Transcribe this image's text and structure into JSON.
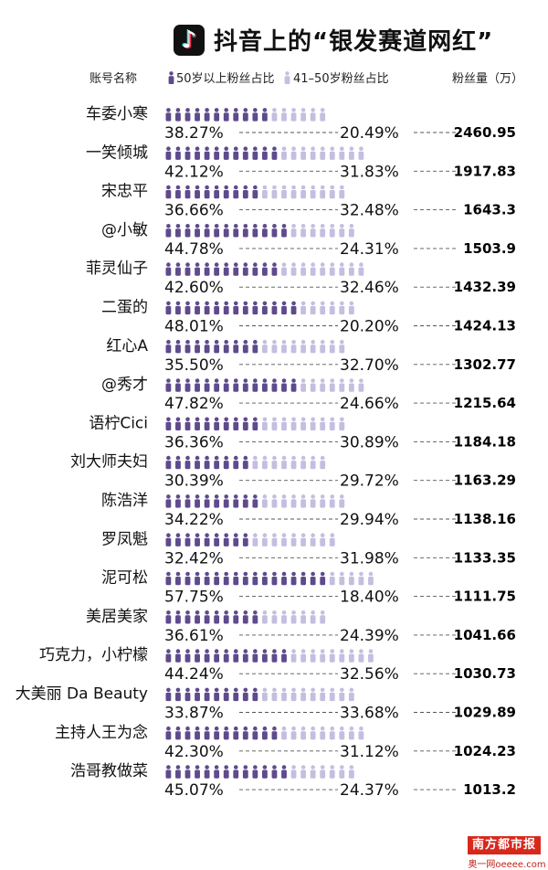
{
  "header": {
    "logo_glyph": "♪",
    "title": "抖音上的“银发赛道网红”",
    "col_account": "账号名称",
    "legend_50plus": "50岁以上粉丝占比",
    "legend_41_50": "41–50岁粉丝占比",
    "col_fans": "粉丝量（万）"
  },
  "colors": {
    "over50": "#5e4a8c",
    "age41_50": "#c4bee0",
    "leader": "#555555"
  },
  "chart_data": {
    "type": "table",
    "title": "抖音上的“银发赛道网红”",
    "columns": [
      "账号名称",
      "50岁以上粉丝占比",
      "41–50岁粉丝占比",
      "粉丝量（万）"
    ],
    "rows": [
      {
        "name": "车委小寒",
        "over50": "38.27%",
        "age41_50": "20.49%",
        "fans": "2460.95"
      },
      {
        "name": "一笑倾城",
        "over50": "42.12%",
        "age41_50": "31.83%",
        "fans": "1917.83"
      },
      {
        "name": "宋忠平",
        "over50": "36.66%",
        "age41_50": "32.48%",
        "fans": "1643.3"
      },
      {
        "name": "@小敏",
        "over50": "44.78%",
        "age41_50": "24.31%",
        "fans": "1503.9"
      },
      {
        "name": "菲灵仙子",
        "over50": "42.60%",
        "age41_50": "32.46%",
        "fans": "1432.39"
      },
      {
        "name": "二蛋的",
        "over50": "48.01%",
        "age41_50": "20.20%",
        "fans": "1424.13"
      },
      {
        "name": "红心A",
        "over50": "35.50%",
        "age41_50": "32.70%",
        "fans": "1302.77"
      },
      {
        "name": "@秀才",
        "over50": "47.82%",
        "age41_50": "24.66%",
        "fans": "1215.64"
      },
      {
        "name": "语柠Cici",
        "over50": "36.36%",
        "age41_50": "30.89%",
        "fans": "1184.18"
      },
      {
        "name": "刘大师夫妇",
        "over50": "30.39%",
        "age41_50": "29.72%",
        "fans": "1163.29"
      },
      {
        "name": "陈浩洋",
        "over50": "34.22%",
        "age41_50": "29.94%",
        "fans": "1138.16"
      },
      {
        "name": "罗凤魁",
        "over50": "32.42%",
        "age41_50": "31.98%",
        "fans": "1133.35"
      },
      {
        "name": "泥可松",
        "over50": "57.75%",
        "age41_50": "18.40%",
        "fans": "1111.75"
      },
      {
        "name": "美居美家",
        "over50": "36.61%",
        "age41_50": "24.39%",
        "fans": "1041.66"
      },
      {
        "name": "巧克力，小柠檬",
        "over50": "44.24%",
        "age41_50": "32.56%",
        "fans": "1030.73"
      },
      {
        "name": "大美丽 Da Beauty",
        "over50": "33.87%",
        "age41_50": "33.68%",
        "fans": "1029.89"
      },
      {
        "name": "主持人王为念",
        "over50": "42.30%",
        "age41_50": "31.12%",
        "fans": "1024.23"
      },
      {
        "name": "浩哥教做菜",
        "over50": "45.07%",
        "age41_50": "24.37%",
        "fans": "1013.2"
      }
    ]
  },
  "footer": {
    "stamp": "南方都市报",
    "site": "奥一网oeeee.com"
  }
}
